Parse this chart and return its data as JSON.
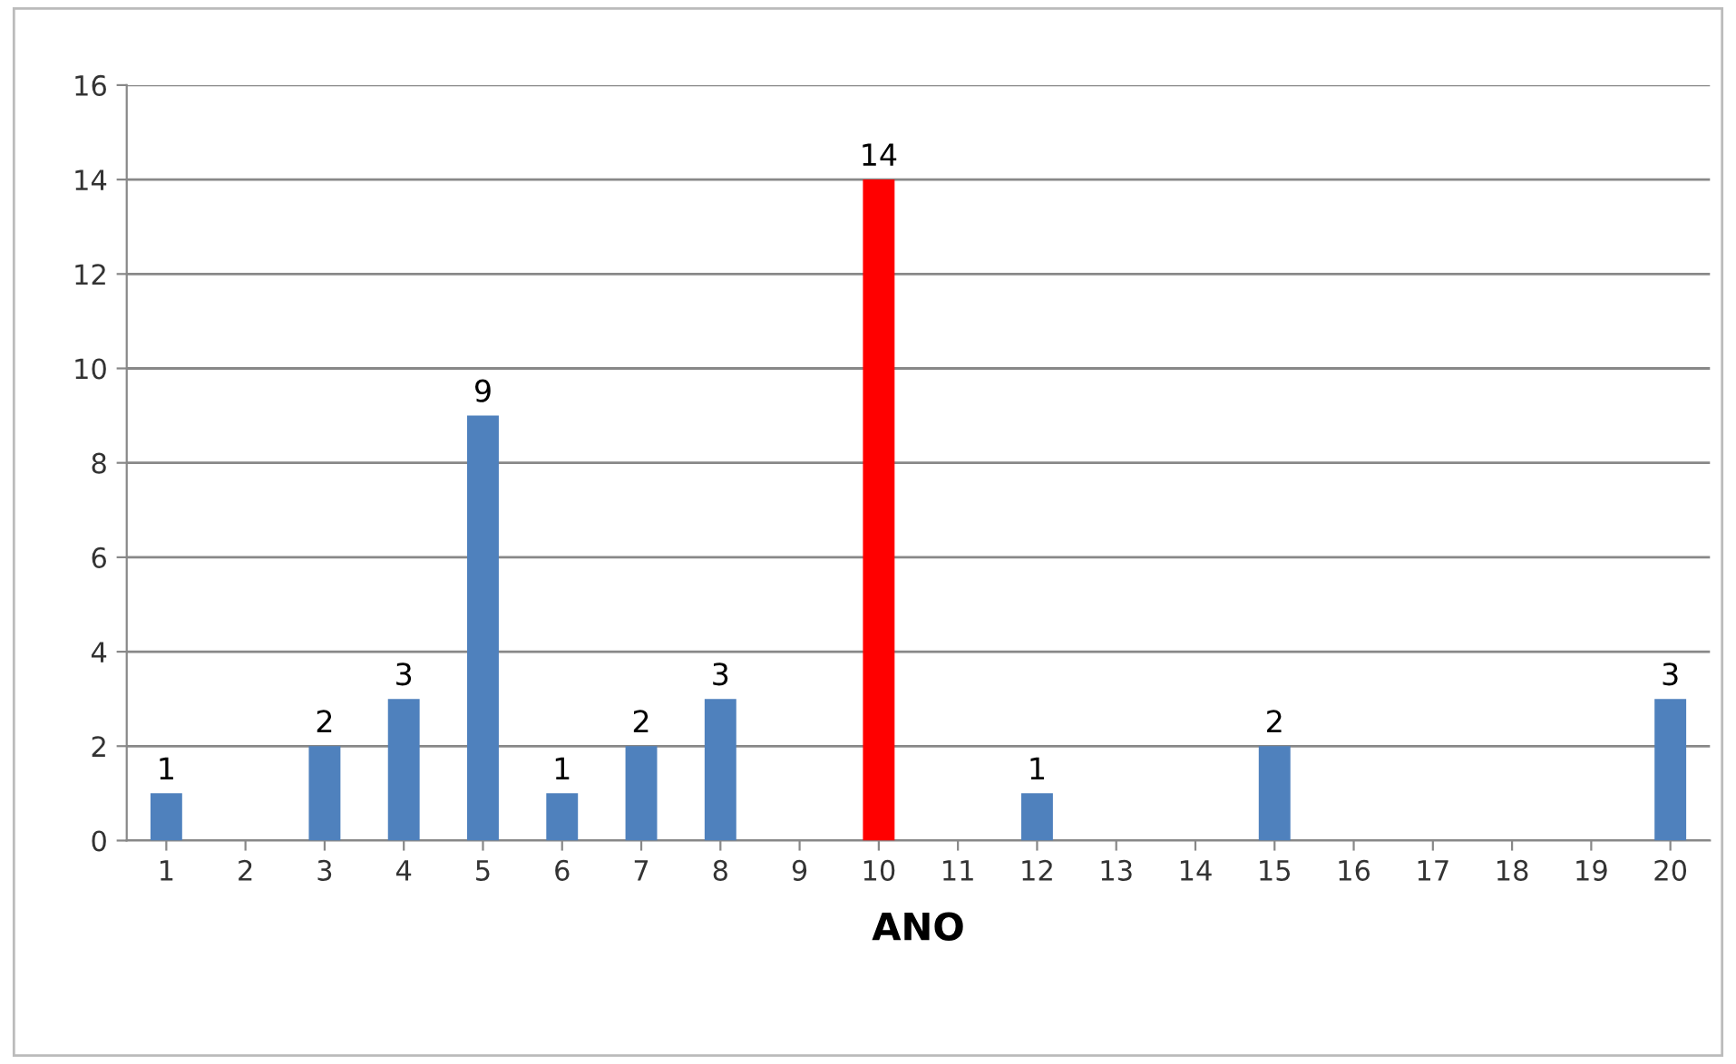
{
  "chart_data": {
    "type": "bar",
    "xlabel": "ANO",
    "categories": [
      "1",
      "2",
      "3",
      "4",
      "5",
      "6",
      "7",
      "8",
      "9",
      "10",
      "11",
      "12",
      "13",
      "14",
      "15",
      "16",
      "17",
      "18",
      "19",
      "20"
    ],
    "values": [
      1,
      null,
      2,
      3,
      9,
      1,
      2,
      3,
      null,
      14,
      null,
      1,
      null,
      null,
      2,
      null,
      null,
      null,
      null,
      3
    ],
    "colors": [
      "#4f81bd",
      "#4f81bd",
      "#4f81bd",
      "#4f81bd",
      "#4f81bd",
      "#4f81bd",
      "#4f81bd",
      "#4f81bd",
      "#4f81bd",
      "#ff0000",
      "#4f81bd",
      "#4f81bd",
      "#4f81bd",
      "#4f81bd",
      "#4f81bd",
      "#4f81bd",
      "#4f81bd",
      "#4f81bd",
      "#4f81bd",
      "#4f81bd"
    ],
    "ylim": [
      0,
      16
    ],
    "yticks": [
      0,
      2,
      4,
      6,
      8,
      10,
      12,
      14,
      16
    ],
    "grid": "y",
    "data_labels": true,
    "legend": false
  }
}
